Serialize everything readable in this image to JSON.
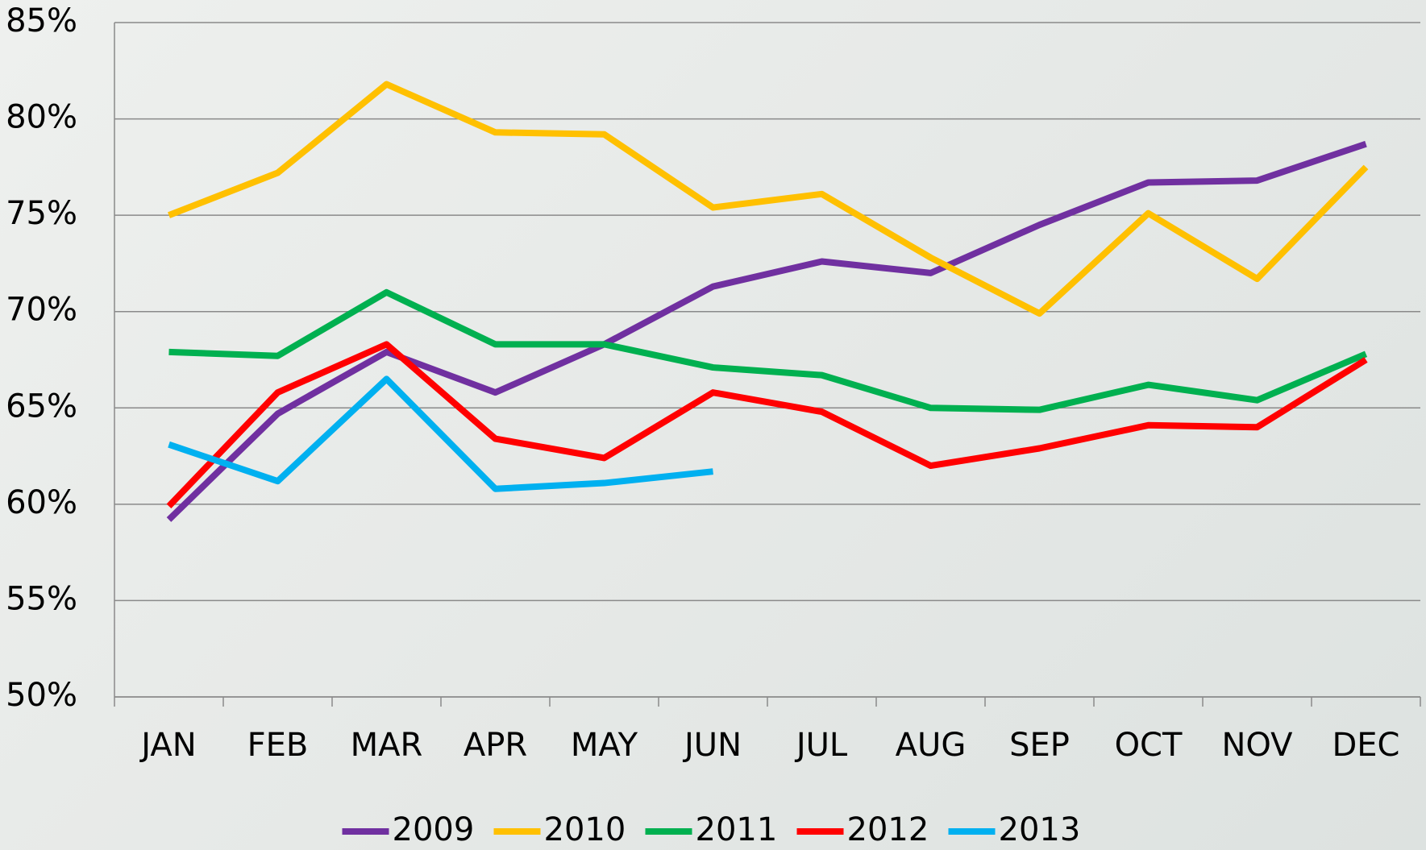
{
  "chart_data": {
    "type": "line",
    "categories": [
      "JAN",
      "FEB",
      "MAR",
      "APR",
      "MAY",
      "JUN",
      "JUL",
      "AUG",
      "SEP",
      "OCT",
      "NOV",
      "DEC"
    ],
    "series": [
      {
        "name": "2009",
        "color": "#7030a0",
        "values": [
          59.2,
          64.7,
          67.9,
          65.8,
          68.3,
          71.3,
          72.6,
          72.0,
          74.5,
          76.7,
          76.8,
          78.7
        ]
      },
      {
        "name": "2010",
        "color": "#ffc000",
        "values": [
          75.0,
          77.2,
          81.8,
          79.3,
          79.2,
          75.4,
          76.1,
          72.8,
          69.9,
          75.1,
          71.7,
          77.5
        ]
      },
      {
        "name": "2011",
        "color": "#00b050",
        "values": [
          67.9,
          67.7,
          71.0,
          68.3,
          68.3,
          67.1,
          66.7,
          65.0,
          64.9,
          66.2,
          65.4,
          67.8
        ]
      },
      {
        "name": "2012",
        "color": "#ff0000",
        "values": [
          59.9,
          65.8,
          68.3,
          63.4,
          62.4,
          65.8,
          64.8,
          62.0,
          62.9,
          64.1,
          64.0,
          67.5
        ]
      },
      {
        "name": "2013",
        "color": "#00b0f0",
        "values": [
          63.1,
          61.2,
          66.5,
          60.8,
          61.1,
          61.7,
          null,
          null,
          null,
          null,
          null,
          null
        ]
      }
    ],
    "ylim": [
      50,
      85
    ],
    "yticks": [
      {
        "value": 50,
        "label": "50%"
      },
      {
        "value": 55,
        "label": "55%"
      },
      {
        "value": 60,
        "label": "60%"
      },
      {
        "value": 65,
        "label": "65%"
      },
      {
        "value": 70,
        "label": "70%"
      },
      {
        "value": 75,
        "label": "75%"
      },
      {
        "value": 80,
        "label": "80%"
      },
      {
        "value": 85,
        "label": "85%"
      }
    ],
    "grid": true,
    "legend": "bottom"
  }
}
